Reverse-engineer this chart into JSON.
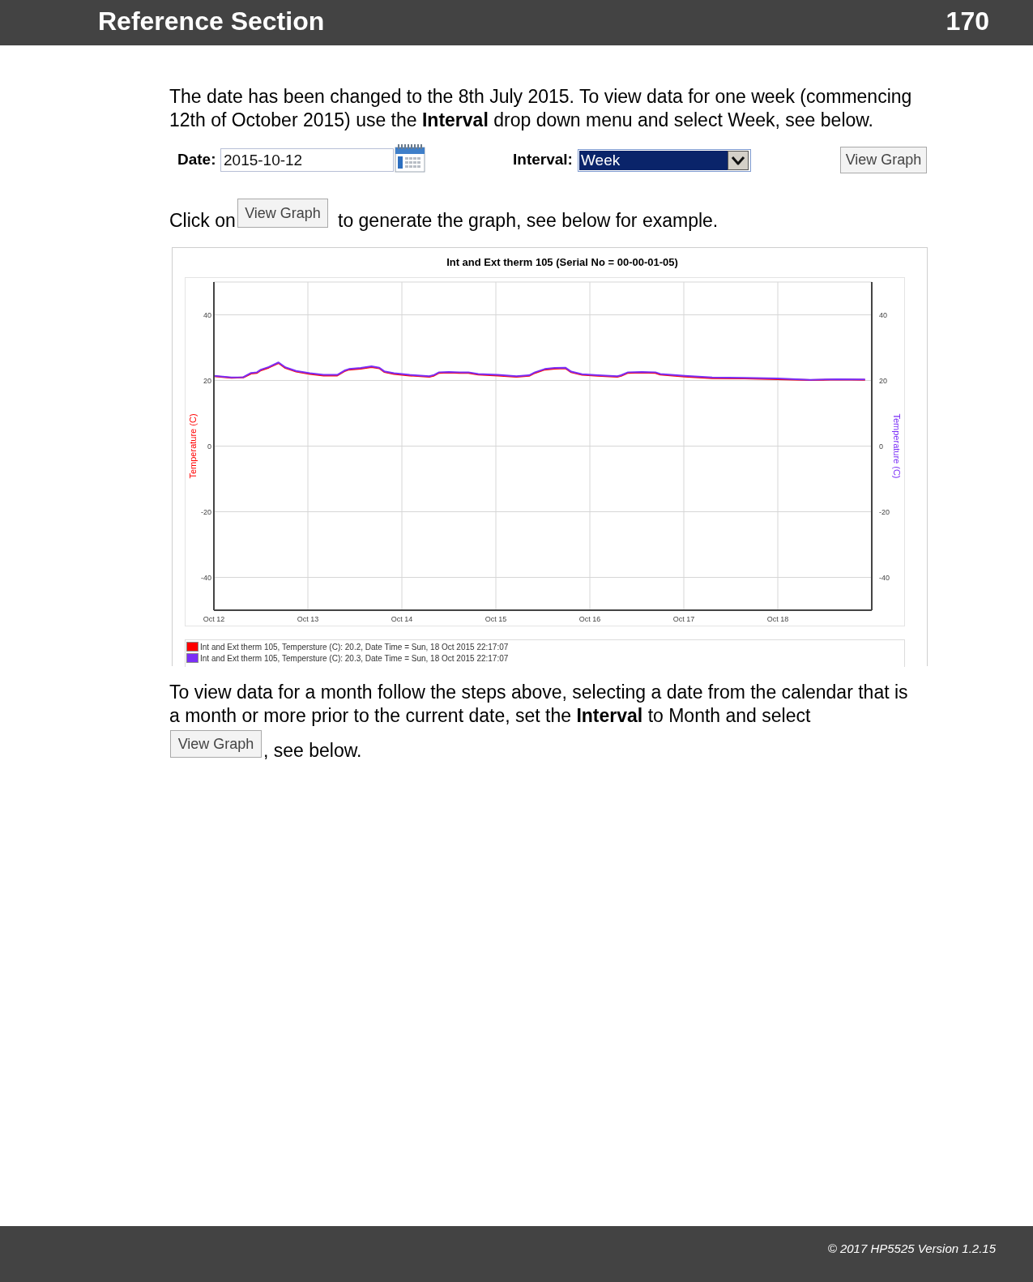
{
  "chart_data": {
    "type": "line",
    "title": "Int and Ext therm 105 (Serial No = 00-00-01-05)",
    "ylabel": "Temperature (C)",
    "y2label": "Temperature (C)",
    "legend": "bottom",
    "grid": true,
    "x": [
      "2015-10-12T00:00",
      "2015-10-12T04:30",
      "2015-10-12T07:30",
      "2015-10-12T09:30",
      "2015-10-12T11:00",
      "2015-10-12T12:00",
      "2015-10-12T14:00",
      "2015-10-12T16:30",
      "2015-10-12T18:15",
      "2015-10-12T21:00",
      "2015-10-13T00:30",
      "2015-10-13T04:00",
      "2015-10-13T07:30",
      "2015-10-13T09:30",
      "2015-10-13T10:30",
      "2015-10-13T13:30",
      "2015-10-13T16:15",
      "2015-10-13T18:15",
      "2015-10-13T19:30",
      "2015-10-13T22:00",
      "2015-10-14T02:00",
      "2015-10-14T07:00",
      "2015-10-14T08:15",
      "2015-10-14T09:30",
      "2015-10-14T12:00",
      "2015-10-14T14:45",
      "2015-10-14T17:00",
      "2015-10-14T19:30",
      "2015-10-15T00:30",
      "2015-10-15T05:15",
      "2015-10-15T08:30",
      "2015-10-15T10:00",
      "2015-10-15T12:30",
      "2015-10-15T15:00",
      "2015-10-15T17:45",
      "2015-10-15T19:15",
      "2015-10-15T22:00",
      "2015-10-16T02:00",
      "2015-10-16T07:00",
      "2015-10-16T08:00",
      "2015-10-16T09:45",
      "2015-10-16T13:15",
      "2015-10-16T16:45",
      "2015-10-16T18:00",
      "2015-10-17T00:15",
      "2015-10-17T07:15",
      "2015-10-17T15:30",
      "2015-10-18T00:00",
      "2015-10-18T08:15",
      "2015-10-18T15:15",
      "2015-10-18T22:17"
    ],
    "xlim": [
      "2015-10-12",
      "2015-10-19"
    ],
    "xticks": [
      {
        "value": "2015-10-12",
        "label": "Oct 12"
      },
      {
        "value": "2015-10-13",
        "label": "Oct 13"
      },
      {
        "value": "2015-10-14",
        "label": "Oct 14"
      },
      {
        "value": "2015-10-15",
        "label": "Oct 15"
      },
      {
        "value": "2015-10-16",
        "label": "Oct 16"
      },
      {
        "value": "2015-10-17",
        "label": "Oct 17"
      },
      {
        "value": "2015-10-18",
        "label": "Oct 18"
      }
    ],
    "ylim": [
      -50,
      50
    ],
    "yticks": [
      -40,
      -20,
      0,
      20,
      40
    ],
    "y2lim": [
      -50,
      50
    ],
    "y2ticks": [
      -40,
      -20,
      0,
      20,
      40
    ],
    "series": [
      {
        "name": "Int and Ext therm 105, Tempersture (C): 20.2, Date Time = Sun, 18 Oct 2015 22:17:07",
        "color": "#ff0000",
        "values": [
          21.3,
          20.8,
          20.9,
          22.1,
          22.3,
          23.1,
          23.9,
          25.3,
          23.8,
          22.7,
          22.0,
          21.5,
          21.5,
          22.9,
          23.3,
          23.6,
          24.1,
          23.7,
          22.6,
          22.0,
          21.5,
          21.1,
          21.5,
          22.3,
          22.4,
          22.3,
          22.3,
          21.8,
          21.5,
          21.1,
          21.4,
          22.3,
          23.3,
          23.6,
          23.7,
          22.5,
          21.7,
          21.4,
          21.1,
          21.4,
          22.3,
          22.4,
          22.3,
          21.8,
          21.2,
          20.7,
          20.6,
          20.4,
          20.1,
          20.3,
          20.2
        ]
      },
      {
        "name": "Int and Ext therm 105, Tempersture (C): 20.3, Date Time = Sun, 18 Oct 2015 22:17:07",
        "color": "#7b2ff7",
        "axis": "y2",
        "values": [
          21.4,
          20.9,
          21.0,
          22.3,
          22.5,
          23.3,
          24.1,
          25.5,
          24.0,
          22.9,
          22.2,
          21.7,
          21.7,
          23.1,
          23.5,
          23.8,
          24.3,
          23.9,
          22.8,
          22.2,
          21.7,
          21.3,
          21.7,
          22.5,
          22.6,
          22.5,
          22.5,
          22.0,
          21.7,
          21.3,
          21.6,
          22.5,
          23.5,
          23.8,
          23.9,
          22.7,
          21.9,
          21.6,
          21.3,
          21.6,
          22.5,
          22.6,
          22.5,
          22.0,
          21.4,
          20.9,
          20.8,
          20.6,
          20.2,
          20.4,
          20.3
        ]
      }
    ],
    "annotations": [
      "Reference Section",
      "170",
      "The date has been changed to the 8th July 2015. To view data for one week (commencing",
      "12th of October 2015) use the",
      "Interval",
      "drop down menu and select Week, see below.",
      "Date:",
      "2015-10-12",
      "Interval:",
      "Week",
      "View Graph",
      "Click on",
      "View Graph",
      "to generate the graph, see below for example.",
      "To view data for a month follow the steps above, selecting a date from the calendar that is",
      "a month or more prior to the current date, set the",
      "Interval",
      "to Month and select",
      "View Graph",
      ", see below.",
      "© 2017 HP5525 Version 1.2.15"
    ]
  }
}
